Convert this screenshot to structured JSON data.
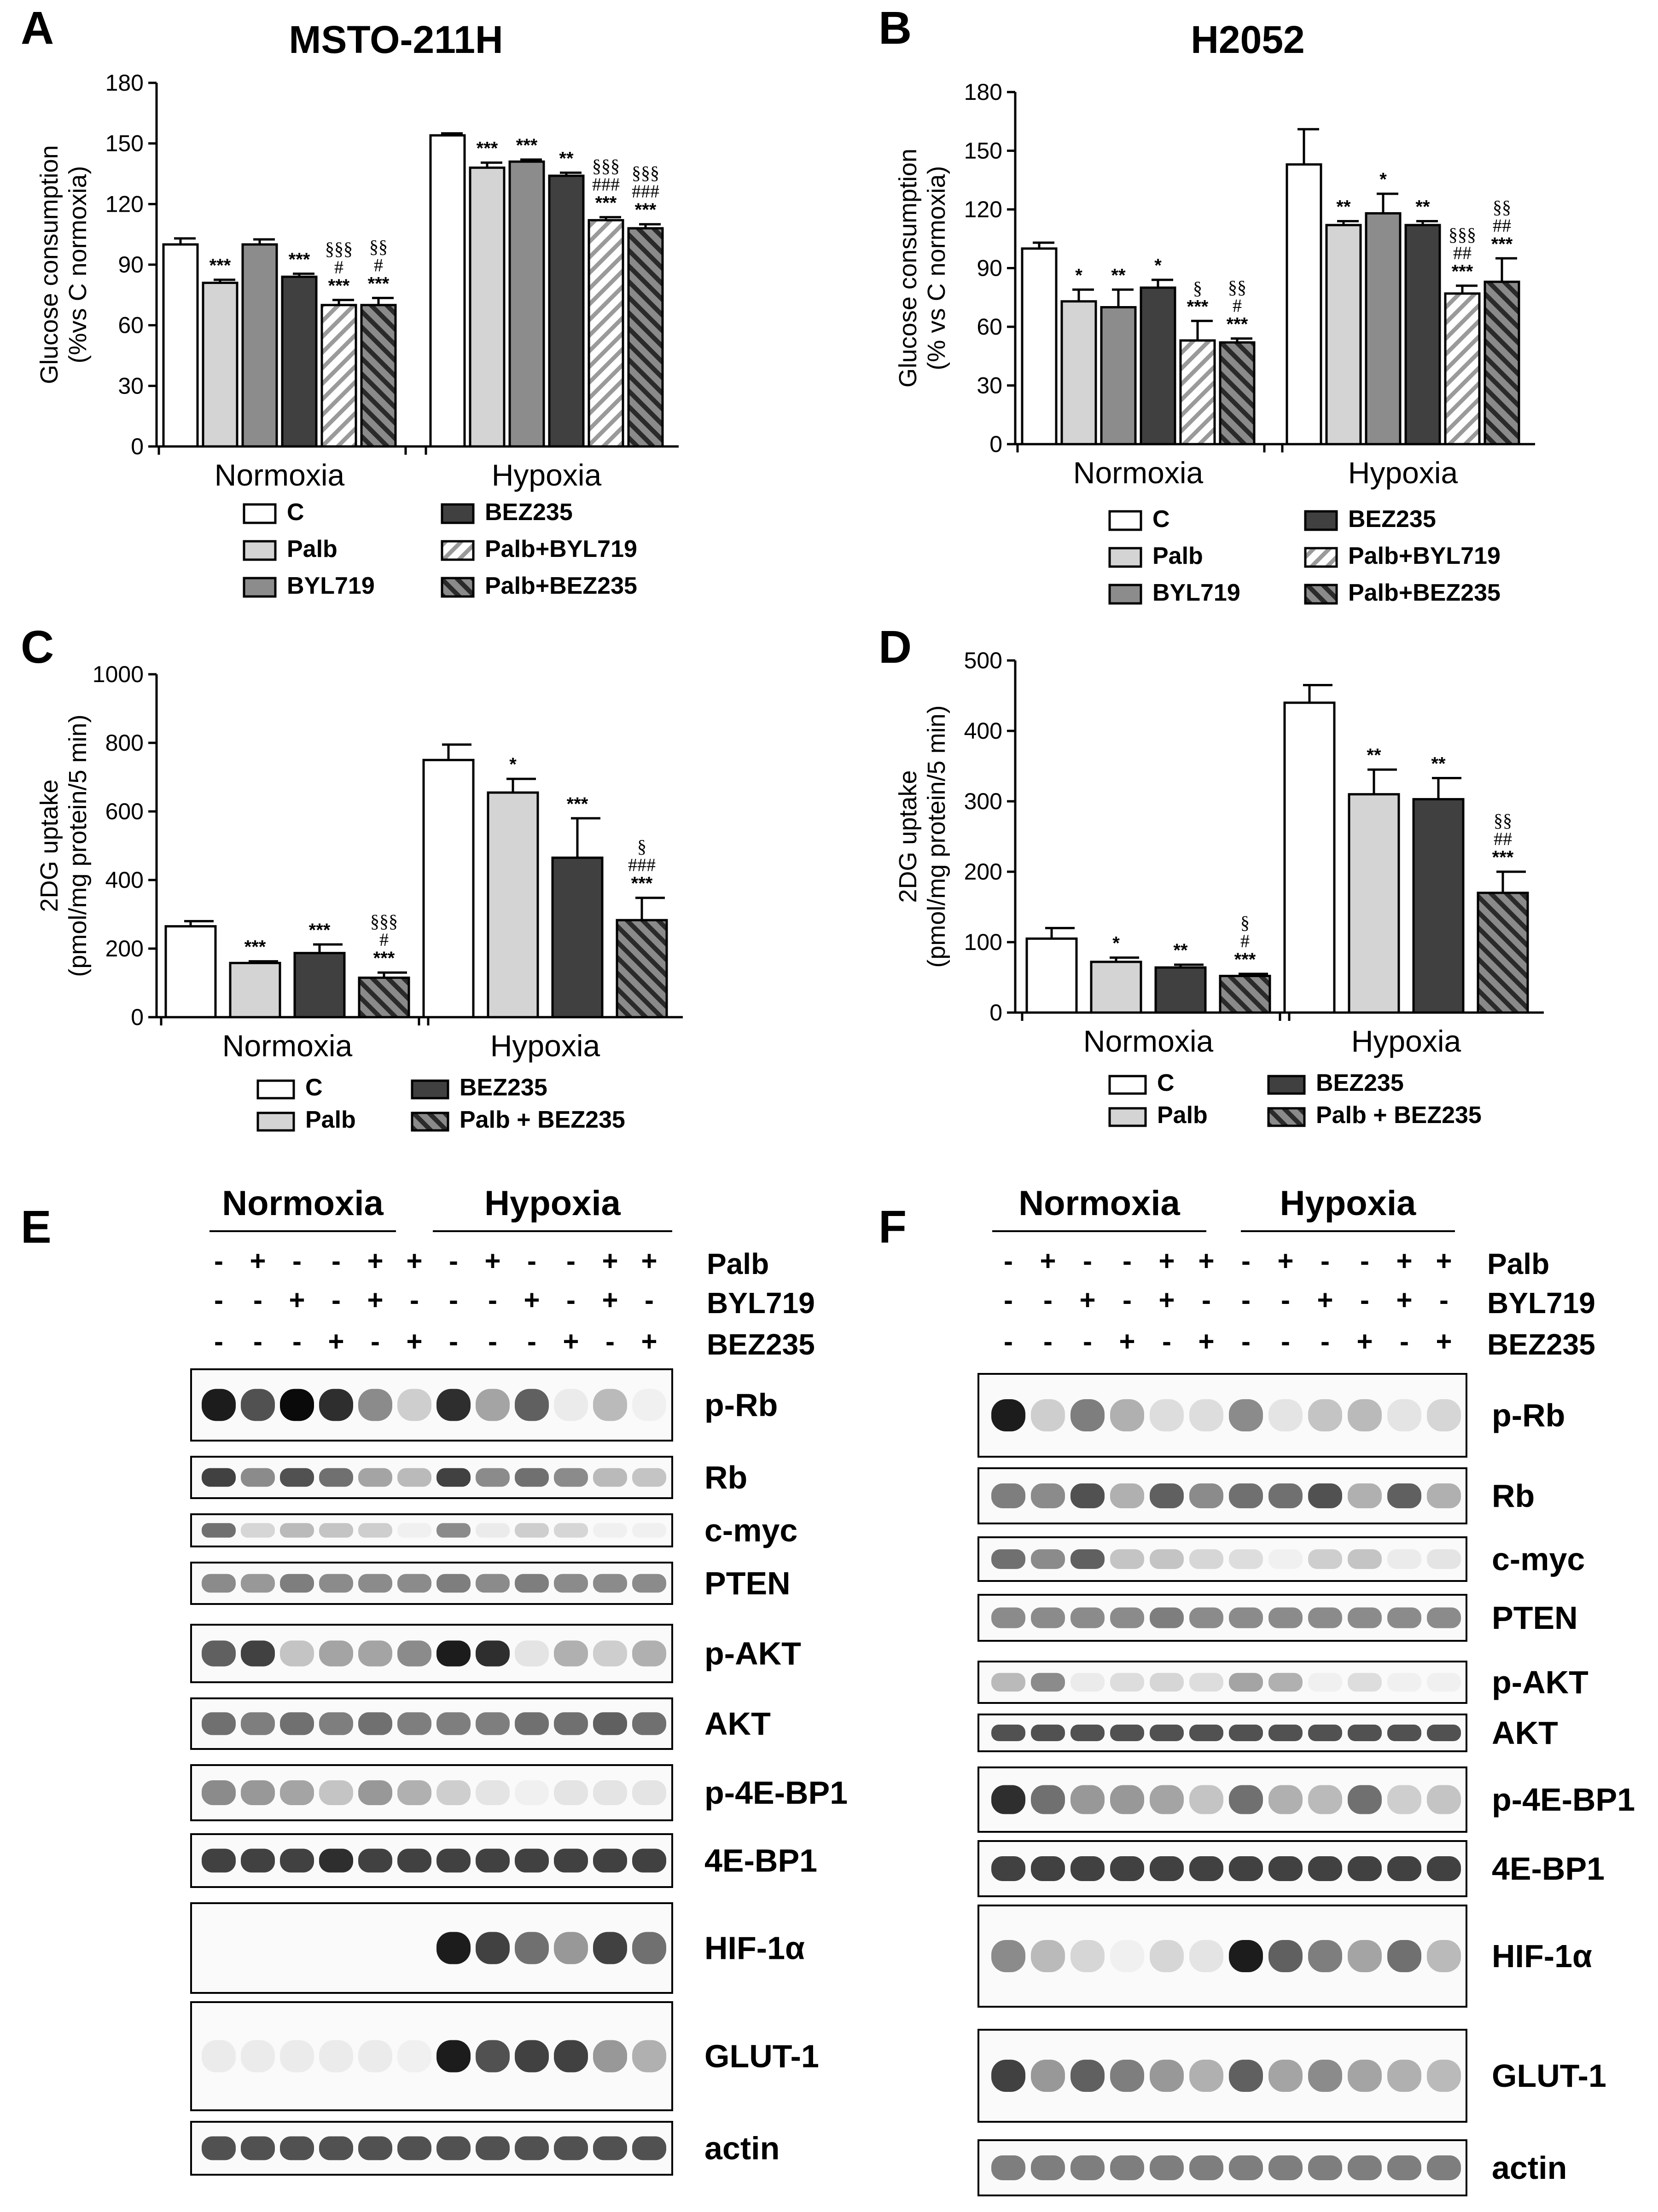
{
  "panels": {
    "A": "A",
    "B": "B",
    "C": "C",
    "D": "D",
    "E": "E",
    "F": "F"
  },
  "colors": {
    "C": "#ffffff",
    "Palb": "#d4d4d4",
    "BYL719": "#8c8c8c",
    "BEZ235": "#404040",
    "Palb+BYL719": "hatch-light",
    "Palb+BEZ235": "hatch-dark"
  },
  "chart_data": [
    {
      "panel": "A",
      "type": "bar",
      "title": "MSTO-211H",
      "ylabel": "Glucose consumption\n(%vs C normoxia)",
      "ylim": [
        0,
        180
      ],
      "yticks": [
        0,
        30,
        60,
        90,
        120,
        150,
        180
      ],
      "categories": [
        "Normoxia",
        "Hypoxia"
      ],
      "legend": [
        "C",
        "Palb",
        "BYL719",
        "BEZ235",
        "Palb+BYL719",
        "Palb+BEZ235"
      ],
      "series": [
        {
          "name": "C",
          "values": [
            100,
            154
          ],
          "errors": [
            3,
            1
          ]
        },
        {
          "name": "Palb",
          "values": [
            81,
            138
          ],
          "errors": [
            1.5,
            2.5
          ]
        },
        {
          "name": "BYL719",
          "values": [
            100,
            141
          ],
          "errors": [
            2.5,
            1
          ]
        },
        {
          "name": "BEZ235",
          "values": [
            84,
            134
          ],
          "errors": [
            1.5,
            1.5
          ]
        },
        {
          "name": "Palb+BYL719",
          "values": [
            70,
            112
          ],
          "errors": [
            2.5,
            1.5
          ]
        },
        {
          "name": "Palb+BEZ235",
          "values": [
            70,
            108
          ],
          "errors": [
            3.5,
            2
          ]
        }
      ],
      "annotations": [
        [
          [],
          [
            "***"
          ],
          [],
          [
            "***"
          ],
          [
            "***",
            "#",
            "§§§"
          ],
          [
            "***",
            "#",
            "§§"
          ]
        ],
        [
          [],
          [
            "***"
          ],
          [
            "***"
          ],
          [
            "**"
          ],
          [
            "***",
            "###",
            "§§§"
          ],
          [
            "***",
            "###",
            "§§§"
          ]
        ]
      ]
    },
    {
      "panel": "B",
      "type": "bar",
      "title": "H2052",
      "ylabel": "Glucose consumption\n(% vs C normoxia)",
      "ylim": [
        0,
        180
      ],
      "yticks": [
        0,
        30,
        60,
        90,
        120,
        150,
        180
      ],
      "categories": [
        "Normoxia",
        "Hypoxia"
      ],
      "legend": [
        "C",
        "Palb",
        "BYL719",
        "BEZ235",
        "Palb+BYL719",
        "Palb+BEZ235"
      ],
      "series": [
        {
          "name": "C",
          "values": [
            100,
            143
          ],
          "errors": [
            3,
            18
          ]
        },
        {
          "name": "Palb",
          "values": [
            73,
            112
          ],
          "errors": [
            6,
            2
          ]
        },
        {
          "name": "BYL719",
          "values": [
            70,
            118
          ],
          "errors": [
            9,
            10
          ]
        },
        {
          "name": "BEZ235",
          "values": [
            80,
            112
          ],
          "errors": [
            4,
            2
          ]
        },
        {
          "name": "Palb+BYL719",
          "values": [
            53,
            77
          ],
          "errors": [
            10,
            4
          ]
        },
        {
          "name": "Palb+BEZ235",
          "values": [
            52,
            83
          ],
          "errors": [
            2,
            12
          ]
        }
      ],
      "annotations": [
        [
          [],
          [
            "*"
          ],
          [
            "**"
          ],
          [
            "*"
          ],
          [
            "***",
            "§"
          ],
          [
            "***",
            "#",
            "§§"
          ]
        ],
        [
          [],
          [
            "**"
          ],
          [
            "*"
          ],
          [
            "**"
          ],
          [
            "***",
            "##",
            "§§§"
          ],
          [
            "***",
            "##",
            "§§"
          ]
        ]
      ]
    },
    {
      "panel": "C",
      "type": "bar",
      "title": "",
      "ylabel": "2DG uptake\n(pmol/mg protein/5 min)",
      "ylim": [
        0,
        1000
      ],
      "yticks": [
        0,
        200,
        400,
        600,
        800,
        1000
      ],
      "categories": [
        "Normoxia",
        "Hypoxia"
      ],
      "legend": [
        "C",
        "Palb",
        "BEZ235",
        "Palb + BEZ235"
      ],
      "series": [
        {
          "name": "C",
          "values": [
            265,
            750
          ],
          "errors": [
            15,
            45
          ]
        },
        {
          "name": "Palb",
          "values": [
            158,
            655
          ],
          "errors": [
            5,
            40
          ]
        },
        {
          "name": "BEZ235",
          "values": [
            187,
            465
          ],
          "errors": [
            25,
            115
          ]
        },
        {
          "name": "Palb + BEZ235",
          "values": [
            115,
            283
          ],
          "errors": [
            15,
            65
          ]
        }
      ],
      "annotations": [
        [
          [],
          [
            "***"
          ],
          [
            "***"
          ],
          [
            "***",
            "#",
            "§§§"
          ]
        ],
        [
          [],
          [
            "*"
          ],
          [
            "***"
          ],
          [
            "***",
            "###",
            "§"
          ]
        ]
      ]
    },
    {
      "panel": "D",
      "type": "bar",
      "title": "",
      "ylabel": "2DG uptake\n(pmol/mg protein/5 min)",
      "ylim": [
        0,
        500
      ],
      "yticks": [
        0,
        100,
        200,
        300,
        400,
        500
      ],
      "categories": [
        "Normoxia",
        "Hypoxia"
      ],
      "legend": [
        "C",
        "Palb",
        "BEZ235",
        "Palb + BEZ235"
      ],
      "series": [
        {
          "name": "C",
          "values": [
            105,
            440
          ],
          "errors": [
            15,
            25
          ]
        },
        {
          "name": "Palb",
          "values": [
            72,
            310
          ],
          "errors": [
            6,
            35
          ]
        },
        {
          "name": "BEZ235",
          "values": [
            64,
            303
          ],
          "errors": [
            4,
            30
          ]
        },
        {
          "name": "Palb + BEZ235",
          "values": [
            52,
            170
          ],
          "errors": [
            3,
            30
          ]
        }
      ],
      "annotations": [
        [
          [],
          [
            "*"
          ],
          [
            "**"
          ],
          [
            "***",
            "#",
            "§"
          ]
        ],
        [
          [],
          [
            "**"
          ],
          [
            "**"
          ],
          [
            "***",
            "##",
            "§§"
          ]
        ]
      ]
    }
  ],
  "blots": [
    {
      "panel": "E",
      "conditions": [
        "Normoxia",
        "Hypoxia"
      ],
      "treatments": [
        {
          "name": "Palb",
          "signs": [
            "-",
            "+",
            "-",
            "-",
            "+",
            "+",
            "-",
            "+",
            "-",
            "-",
            "+",
            "+"
          ]
        },
        {
          "name": "BYL719",
          "signs": [
            "-",
            "-",
            "+",
            "-",
            "+",
            "-",
            "-",
            "-",
            "+",
            "-",
            "+",
            "-"
          ]
        },
        {
          "name": "BEZ235",
          "signs": [
            "-",
            "-",
            "-",
            "+",
            "-",
            "+",
            "-",
            "-",
            "-",
            "+",
            "-",
            "+"
          ]
        }
      ],
      "proteins": [
        {
          "name": "p-Rb",
          "intensities": [
            0.95,
            0.8,
            1.0,
            0.9,
            0.6,
            0.3,
            0.9,
            0.5,
            0.75,
            0.1,
            0.4,
            0.05
          ]
        },
        {
          "name": "Rb",
          "intensities": [
            0.85,
            0.6,
            0.8,
            0.7,
            0.5,
            0.4,
            0.85,
            0.6,
            0.7,
            0.6,
            0.4,
            0.35
          ]
        },
        {
          "name": "c-myc",
          "intensities": [
            0.7,
            0.25,
            0.4,
            0.35,
            0.3,
            0.05,
            0.6,
            0.1,
            0.3,
            0.25,
            0.05,
            0.05
          ]
        },
        {
          "name": "PTEN",
          "intensities": [
            0.6,
            0.55,
            0.65,
            0.6,
            0.6,
            0.6,
            0.65,
            0.6,
            0.65,
            0.6,
            0.6,
            0.6
          ]
        },
        {
          "name": "p-AKT",
          "intensities": [
            0.75,
            0.85,
            0.35,
            0.5,
            0.5,
            0.6,
            0.95,
            0.9,
            0.15,
            0.45,
            0.3,
            0.45
          ]
        },
        {
          "name": "AKT",
          "intensities": [
            0.7,
            0.65,
            0.7,
            0.65,
            0.7,
            0.65,
            0.65,
            0.65,
            0.7,
            0.7,
            0.75,
            0.7
          ]
        },
        {
          "name": "p-4E-BP1",
          "intensities": [
            0.6,
            0.55,
            0.5,
            0.35,
            0.55,
            0.45,
            0.3,
            0.15,
            0.05,
            0.15,
            0.15,
            0.15
          ]
        },
        {
          "name": "4E-BP1",
          "intensities": [
            0.85,
            0.85,
            0.85,
            0.9,
            0.85,
            0.85,
            0.85,
            0.85,
            0.85,
            0.85,
            0.85,
            0.85
          ]
        },
        {
          "name": "HIF-1α",
          "intensities": [
            0,
            0,
            0,
            0,
            0,
            0,
            0.95,
            0.85,
            0.7,
            0.55,
            0.85,
            0.7
          ]
        },
        {
          "name": "GLUT-1",
          "intensities": [
            0.1,
            0.1,
            0.1,
            0.1,
            0.1,
            0.05,
            0.95,
            0.8,
            0.85,
            0.85,
            0.55,
            0.45
          ]
        },
        {
          "name": "actin",
          "intensities": [
            0.8,
            0.8,
            0.8,
            0.8,
            0.8,
            0.8,
            0.8,
            0.8,
            0.8,
            0.8,
            0.8,
            0.8
          ]
        }
      ]
    },
    {
      "panel": "F",
      "conditions": [
        "Normoxia",
        "Hypoxia"
      ],
      "treatments": [
        {
          "name": "Palb",
          "signs": [
            "-",
            "+",
            "-",
            "-",
            "+",
            "+",
            "-",
            "+",
            "-",
            "-",
            "+",
            "+"
          ]
        },
        {
          "name": "BYL719",
          "signs": [
            "-",
            "-",
            "+",
            "-",
            "+",
            "-",
            "-",
            "-",
            "+",
            "-",
            "+",
            "-"
          ]
        },
        {
          "name": "BEZ235",
          "signs": [
            "-",
            "-",
            "-",
            "+",
            "-",
            "+",
            "-",
            "-",
            "-",
            "+",
            "-",
            "+"
          ]
        }
      ],
      "proteins": [
        {
          "name": "p-Rb",
          "intensities": [
            0.95,
            0.3,
            0.65,
            0.45,
            0.2,
            0.2,
            0.6,
            0.15,
            0.35,
            0.4,
            0.15,
            0.25
          ]
        },
        {
          "name": "Rb",
          "intensities": [
            0.65,
            0.6,
            0.8,
            0.45,
            0.75,
            0.6,
            0.7,
            0.7,
            0.8,
            0.45,
            0.75,
            0.45
          ]
        },
        {
          "name": "c-myc",
          "intensities": [
            0.7,
            0.6,
            0.75,
            0.35,
            0.35,
            0.25,
            0.2,
            0.05,
            0.3,
            0.35,
            0.1,
            0.15
          ]
        },
        {
          "name": "PTEN",
          "intensities": [
            0.6,
            0.6,
            0.6,
            0.6,
            0.65,
            0.6,
            0.6,
            0.6,
            0.6,
            0.6,
            0.6,
            0.6
          ]
        },
        {
          "name": "p-AKT",
          "intensities": [
            0.4,
            0.6,
            0.1,
            0.2,
            0.25,
            0.2,
            0.5,
            0.45,
            0.05,
            0.2,
            0.05,
            0.05
          ]
        },
        {
          "name": "AKT",
          "intensities": [
            0.8,
            0.8,
            0.8,
            0.8,
            0.8,
            0.8,
            0.8,
            0.8,
            0.8,
            0.8,
            0.8,
            0.8
          ]
        },
        {
          "name": "p-4E-BP1",
          "intensities": [
            0.9,
            0.7,
            0.55,
            0.55,
            0.5,
            0.35,
            0.7,
            0.45,
            0.4,
            0.7,
            0.3,
            0.35
          ]
        },
        {
          "name": "4E-BP1",
          "intensities": [
            0.85,
            0.85,
            0.85,
            0.85,
            0.85,
            0.85,
            0.85,
            0.85,
            0.85,
            0.85,
            0.85,
            0.85
          ]
        },
        {
          "name": "HIF-1α",
          "intensities": [
            0.6,
            0.4,
            0.25,
            0.05,
            0.25,
            0.15,
            0.95,
            0.75,
            0.65,
            0.5,
            0.7,
            0.4
          ]
        },
        {
          "name": "GLUT-1",
          "intensities": [
            0.85,
            0.55,
            0.75,
            0.65,
            0.55,
            0.45,
            0.75,
            0.5,
            0.6,
            0.5,
            0.45,
            0.4
          ]
        },
        {
          "name": "actin",
          "intensities": [
            0.65,
            0.65,
            0.65,
            0.65,
            0.65,
            0.65,
            0.65,
            0.65,
            0.65,
            0.65,
            0.65,
            0.65
          ]
        }
      ]
    }
  ]
}
